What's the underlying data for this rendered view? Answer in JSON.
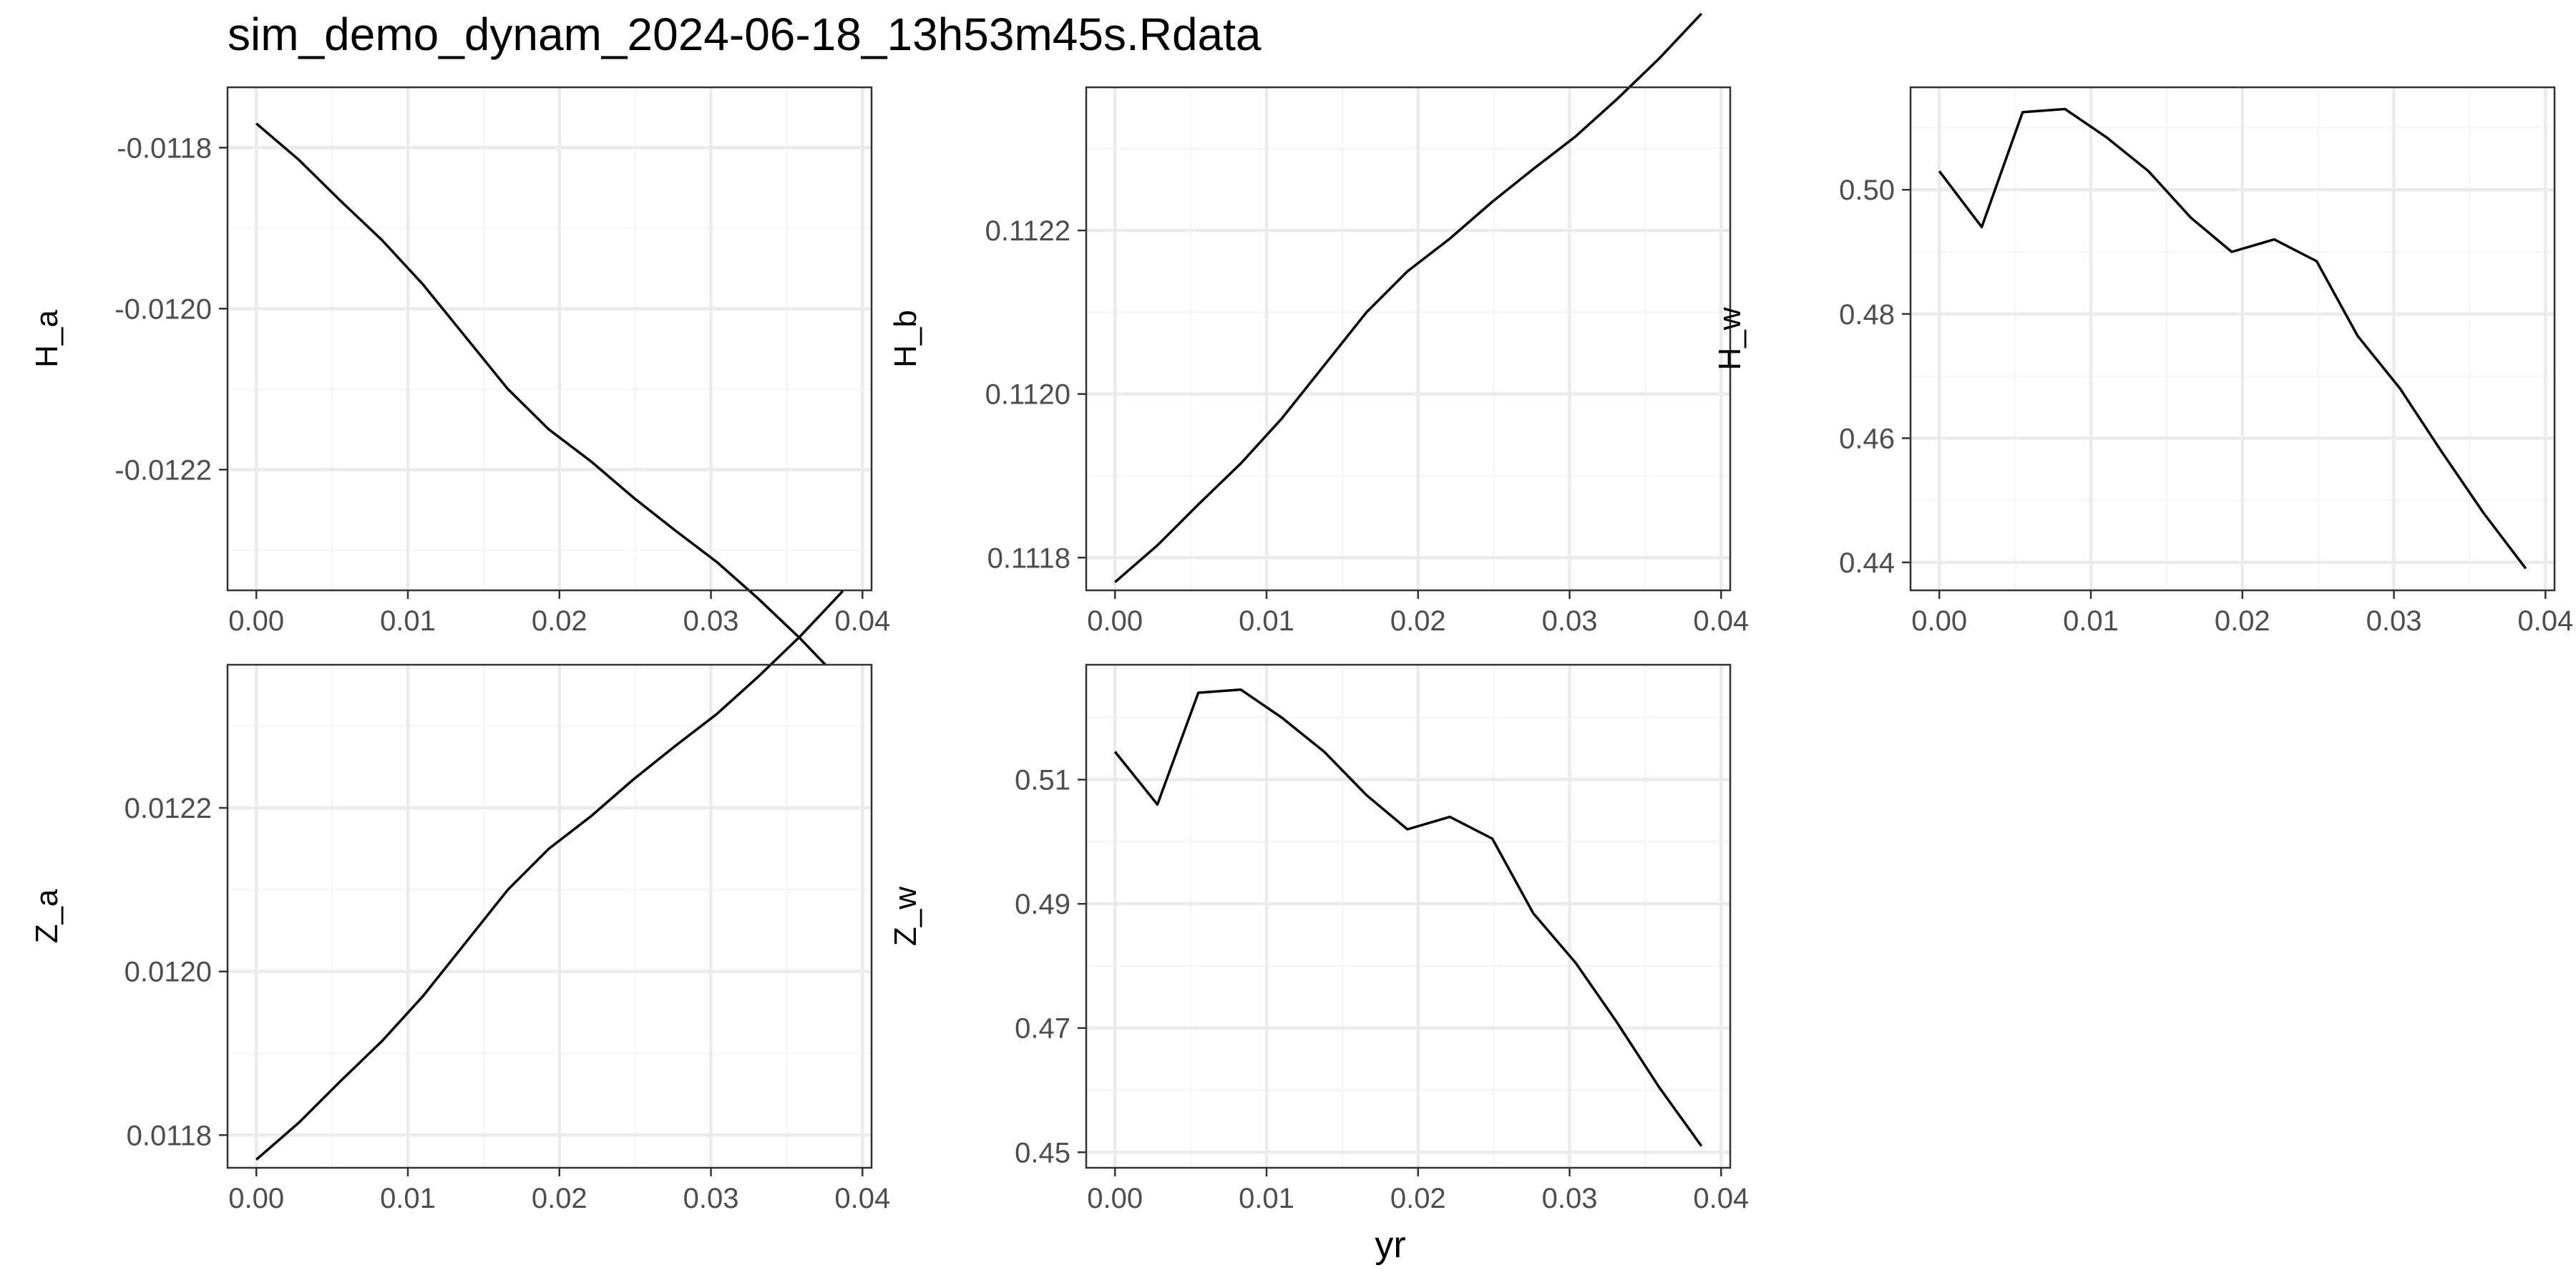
{
  "title": "sim_demo_dynam_2024-06-18_13h53m45s.Rdata",
  "xlabel": "yr",
  "colors": {
    "line": "#000000",
    "panel_border": "#333333",
    "grid_major": "#ebebeb",
    "grid_minor": "#f5f5f5",
    "tick_text": "#4d4d4d",
    "title_text": "#000000"
  },
  "chart_data": [
    {
      "type": "line",
      "ylabel": "H_a",
      "xlim": [
        -0.0019,
        0.0406
      ],
      "ylim": [
        -0.01235,
        -0.011725
      ],
      "xticks": [
        0.0,
        0.01,
        0.02,
        0.03,
        0.04
      ],
      "xtick_labels": [
        "0.00",
        "0.01",
        "0.02",
        "0.03",
        "0.04"
      ],
      "yticks": [
        -0.0118,
        -0.012,
        -0.0122
      ],
      "ytick_labels": [
        "-0.0118",
        "-0.0120",
        "-0.0122"
      ],
      "x": [
        0.0,
        0.0028,
        0.0055,
        0.0083,
        0.011,
        0.0138,
        0.0166,
        0.0193,
        0.0221,
        0.0249,
        0.0276,
        0.0304,
        0.0331,
        0.0359,
        0.0387
      ],
      "y": [
        -0.01177,
        -0.011815,
        -0.011865,
        -0.011915,
        -0.01197,
        -0.012035,
        -0.0121,
        -0.01215,
        -0.01219,
        -0.012235,
        -0.012275,
        -0.012315,
        -0.01236,
        -0.01241,
        -0.012465
      ]
    },
    {
      "type": "line",
      "ylabel": "H_b",
      "xlim": [
        -0.0019,
        0.0406
      ],
      "ylim": [
        0.11176,
        0.112375
      ],
      "xticks": [
        0.0,
        0.01,
        0.02,
        0.03,
        0.04
      ],
      "xtick_labels": [
        "0.00",
        "0.01",
        "0.02",
        "0.03",
        "0.04"
      ],
      "yticks": [
        0.1118,
        0.112,
        0.1122
      ],
      "ytick_labels": [
        "0.1118",
        "0.1120",
        "0.1122"
      ],
      "x": [
        0.0,
        0.0028,
        0.0055,
        0.0083,
        0.011,
        0.0138,
        0.0166,
        0.0193,
        0.0221,
        0.0249,
        0.0276,
        0.0304,
        0.0331,
        0.0359,
        0.0387
      ],
      "y": [
        0.11177,
        0.111815,
        0.111865,
        0.111915,
        0.11197,
        0.112035,
        0.1121,
        0.11215,
        0.11219,
        0.112235,
        0.112275,
        0.112315,
        0.11236,
        0.11241,
        0.112465
      ]
    },
    {
      "type": "line",
      "ylabel": "H_w",
      "xlim": [
        -0.0019,
        0.0406
      ],
      "ylim": [
        0.4355,
        0.5165
      ],
      "xticks": [
        0.0,
        0.01,
        0.02,
        0.03,
        0.04
      ],
      "xtick_labels": [
        "0.00",
        "0.01",
        "0.02",
        "0.03",
        "0.04"
      ],
      "yticks": [
        0.44,
        0.46,
        0.48,
        0.5
      ],
      "ytick_labels": [
        "0.44",
        "0.46",
        "0.48",
        "0.50"
      ],
      "x": [
        0.0,
        0.0028,
        0.0055,
        0.0083,
        0.011,
        0.0138,
        0.0166,
        0.0193,
        0.0221,
        0.0249,
        0.0276,
        0.0304,
        0.0331,
        0.0359,
        0.0387
      ],
      "y": [
        0.503,
        0.494,
        0.5125,
        0.513,
        0.5085,
        0.503,
        0.4955,
        0.49,
        0.492,
        0.4885,
        0.4765,
        0.468,
        0.458,
        0.448,
        0.439
      ]
    },
    {
      "type": "line",
      "ylabel": "Z_a",
      "xlim": [
        -0.0019,
        0.0406
      ],
      "ylim": [
        0.01176,
        0.012375
      ],
      "xticks": [
        0.0,
        0.01,
        0.02,
        0.03,
        0.04
      ],
      "xtick_labels": [
        "0.00",
        "0.01",
        "0.02",
        "0.03",
        "0.04"
      ],
      "yticks": [
        0.0118,
        0.012,
        0.0122
      ],
      "ytick_labels": [
        "0.0118",
        "0.0120",
        "0.0122"
      ],
      "x": [
        0.0,
        0.0028,
        0.0055,
        0.0083,
        0.011,
        0.0138,
        0.0166,
        0.0193,
        0.0221,
        0.0249,
        0.0276,
        0.0304,
        0.0331,
        0.0359,
        0.0387
      ],
      "y": [
        0.01177,
        0.011815,
        0.011865,
        0.011915,
        0.01197,
        0.012035,
        0.0121,
        0.01215,
        0.01219,
        0.012235,
        0.012275,
        0.012315,
        0.01236,
        0.01241,
        0.012465
      ]
    },
    {
      "type": "line",
      "ylabel": "Z_w",
      "xlim": [
        -0.0019,
        0.0406
      ],
      "ylim": [
        0.4475,
        0.5285
      ],
      "xticks": [
        0.0,
        0.01,
        0.02,
        0.03,
        0.04
      ],
      "xtick_labels": [
        "0.00",
        "0.01",
        "0.02",
        "0.03",
        "0.04"
      ],
      "yticks": [
        0.45,
        0.47,
        0.49,
        0.51
      ],
      "ytick_labels": [
        "0.45",
        "0.47",
        "0.49",
        "0.51"
      ],
      "x": [
        0.0,
        0.0028,
        0.0055,
        0.0083,
        0.011,
        0.0138,
        0.0166,
        0.0193,
        0.0221,
        0.0249,
        0.0276,
        0.0304,
        0.0331,
        0.0359,
        0.0387
      ],
      "y": [
        0.5145,
        0.506,
        0.524,
        0.5245,
        0.52,
        0.5145,
        0.5075,
        0.502,
        0.504,
        0.5005,
        0.4885,
        0.4805,
        0.471,
        0.4605,
        0.451
      ]
    }
  ]
}
